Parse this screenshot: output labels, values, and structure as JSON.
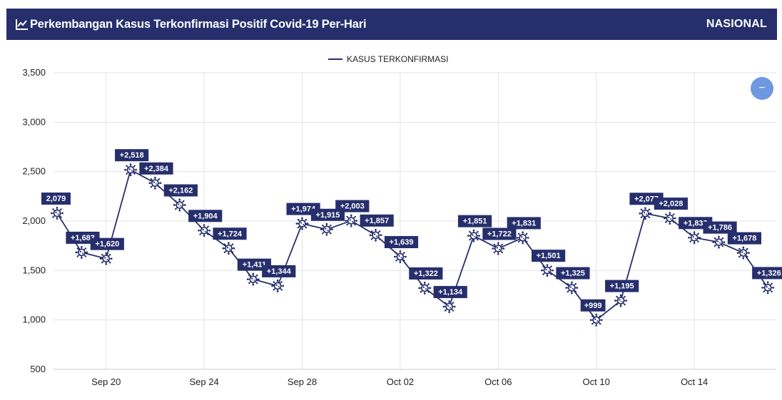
{
  "header": {
    "title": "Perkembangan Kasus Terkonfirmasi Positif Covid-19 Per-Hari",
    "scope": "NASIONAL",
    "title_icon": "line-chart-icon"
  },
  "legend": {
    "label": "KASUS TERKONFIRMASI"
  },
  "zoom_button": {
    "label": "−"
  },
  "colors": {
    "header_bg": "#262f6c",
    "series": "#262f6c",
    "zoom_button": "#6e98e0",
    "grid": "#e3e3e3"
  },
  "chart_data": {
    "type": "line",
    "x_tick_labels": [
      "Sep 20",
      "Sep 24",
      "Sep 28",
      "Oct 02",
      "Oct 06",
      "Oct 10",
      "Oct 14"
    ],
    "x_tick_dates": [
      "2020-09-20",
      "2020-09-24",
      "2020-09-28",
      "2020-10-02",
      "2020-10-06",
      "2020-10-10",
      "2020-10-14"
    ],
    "x": [
      "2020-09-18",
      "2020-09-19",
      "2020-09-20",
      "2020-09-21",
      "2020-09-22",
      "2020-09-23",
      "2020-09-24",
      "2020-09-25",
      "2020-09-26",
      "2020-09-27",
      "2020-09-28",
      "2020-09-29",
      "2020-09-30",
      "2020-10-01",
      "2020-10-02",
      "2020-10-03",
      "2020-10-04",
      "2020-10-05",
      "2020-10-06",
      "2020-10-07",
      "2020-10-08",
      "2020-10-09",
      "2020-10-10",
      "2020-10-11",
      "2020-10-12",
      "2020-10-13",
      "2020-10-14",
      "2020-10-15",
      "2020-10-16",
      "2020-10-17"
    ],
    "series": [
      {
        "name": "KASUS TERKONFIRMASI",
        "values": [
          2079,
          1683,
          1620,
          2518,
          2384,
          2162,
          1904,
          1724,
          1411,
          1344,
          1974,
          1915,
          2003,
          1857,
          1639,
          1322,
          1134,
          1851,
          1722,
          1831,
          1501,
          1325,
          999,
          1195,
          2077,
          2028,
          1832,
          1786,
          1678,
          1326
        ],
        "labels": [
          "2,079",
          "+1,683",
          "+1,620",
          "+2,518",
          "+2,384",
          "+2,162",
          "+1,904",
          "+1,724",
          "+1,411",
          "+1,344",
          "+1,974",
          "+1,915",
          "+2,003",
          "+1,857",
          "+1,639",
          "+1,322",
          "+1,134",
          "+1,851",
          "+1,722",
          "+1,831",
          "+1,501",
          "+1,325",
          "+999",
          "+1,195",
          "+2,077",
          "+2,028",
          "+1,832",
          "+1,786",
          "+1,678",
          "+1,326"
        ]
      }
    ],
    "y_ticks": [
      "3,500",
      "3,000",
      "2,500",
      "2,000",
      "1,500",
      "1,000",
      "500"
    ],
    "y_tick_values": [
      3500,
      3000,
      2500,
      2000,
      1500,
      1000,
      500
    ],
    "ylim": [
      500,
      3500
    ],
    "grid": true,
    "legend_position": "top-center",
    "marker": "virus-icon"
  }
}
